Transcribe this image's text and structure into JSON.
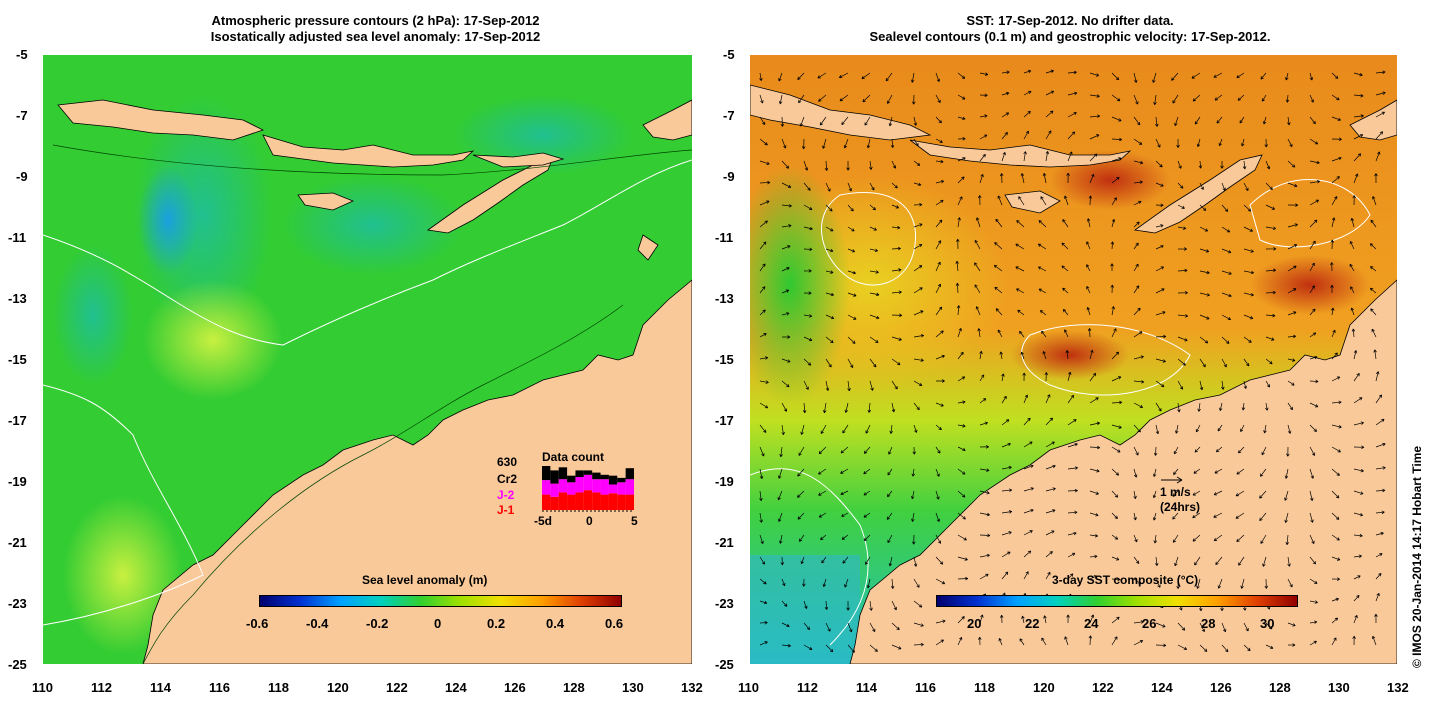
{
  "left_panel": {
    "title_line1": "Atmospheric pressure contours (2 hPa): 17-Sep-2012",
    "title_line2": "Isostatically adjusted sea level anomaly: 17-Sep-2012",
    "lat_ticks": [
      "-5",
      "-7",
      "-9",
      "-11",
      "-13",
      "-15",
      "-17",
      "-19",
      "-21",
      "-23",
      "-25"
    ],
    "lon_ticks": [
      "110",
      "112",
      "114",
      "116",
      "118",
      "120",
      "122",
      "124",
      "126",
      "128",
      "130",
      "132"
    ],
    "colorbar": {
      "label": "Sea level anomaly (m)",
      "ticks": [
        "-0.6",
        "-0.4",
        "-0.2",
        "0",
        "0.2",
        "0.4",
        "0.6"
      ]
    },
    "data_count": {
      "total": "630",
      "title": "Data count",
      "legend": [
        {
          "label": "Cr2",
          "color": "#000000"
        },
        {
          "label": "J-2",
          "color": "#ff00ff"
        },
        {
          "label": "J-1",
          "color": "#ff0000"
        }
      ],
      "axis_ticks": [
        "-5d",
        "0",
        "5"
      ],
      "bars": [
        {
          "j1": 0.35,
          "j2": 0.33,
          "cr2": 0.32
        },
        {
          "j1": 0.3,
          "j2": 0.3,
          "cr2": 0.3
        },
        {
          "j1": 0.4,
          "j2": 0.3,
          "cr2": 0.27
        },
        {
          "j1": 0.35,
          "j2": 0.28,
          "cr2": 0.15
        },
        {
          "j1": 0.4,
          "j2": 0.35,
          "cr2": 0.15
        },
        {
          "j1": 0.45,
          "j2": 0.35,
          "cr2": 0.1
        },
        {
          "j1": 0.4,
          "j2": 0.3,
          "cr2": 0.15
        },
        {
          "j1": 0.35,
          "j2": 0.35,
          "cr2": 0.1
        },
        {
          "j1": 0.38,
          "j2": 0.2,
          "cr2": 0.2
        },
        {
          "j1": 0.35,
          "j2": 0.28,
          "cr2": 0.1
        },
        {
          "j1": 0.35,
          "j2": 0.35,
          "cr2": 0.25
        }
      ]
    }
  },
  "right_panel": {
    "title_line1": "SST: 17-Sep-2012. No drifter data.",
    "title_line2": "Sealevel contours (0.1 m) and geostrophic velocity: 17-Sep-2012.",
    "lat_ticks": [
      "-5",
      "-7",
      "-9",
      "-11",
      "-13",
      "-15",
      "-17",
      "-19",
      "-21",
      "-23",
      "-25"
    ],
    "lon_ticks": [
      "110",
      "112",
      "114",
      "116",
      "118",
      "120",
      "122",
      "124",
      "126",
      "128",
      "130",
      "132"
    ],
    "colorbar": {
      "label": "3-day SST composite (°C)",
      "ticks": [
        "20",
        "22",
        "24",
        "26",
        "28",
        "30"
      ]
    },
    "velocity_scale": {
      "line1": "1 m/s",
      "line2": "(24hrs)"
    }
  },
  "credit": "© IMOS 20-Jan-2014 14:17 Hobart Time",
  "colors": {
    "land": "#f9c99a",
    "ocean_green": "#2fcf2f",
    "ocean_warm": "#e88a1c"
  }
}
